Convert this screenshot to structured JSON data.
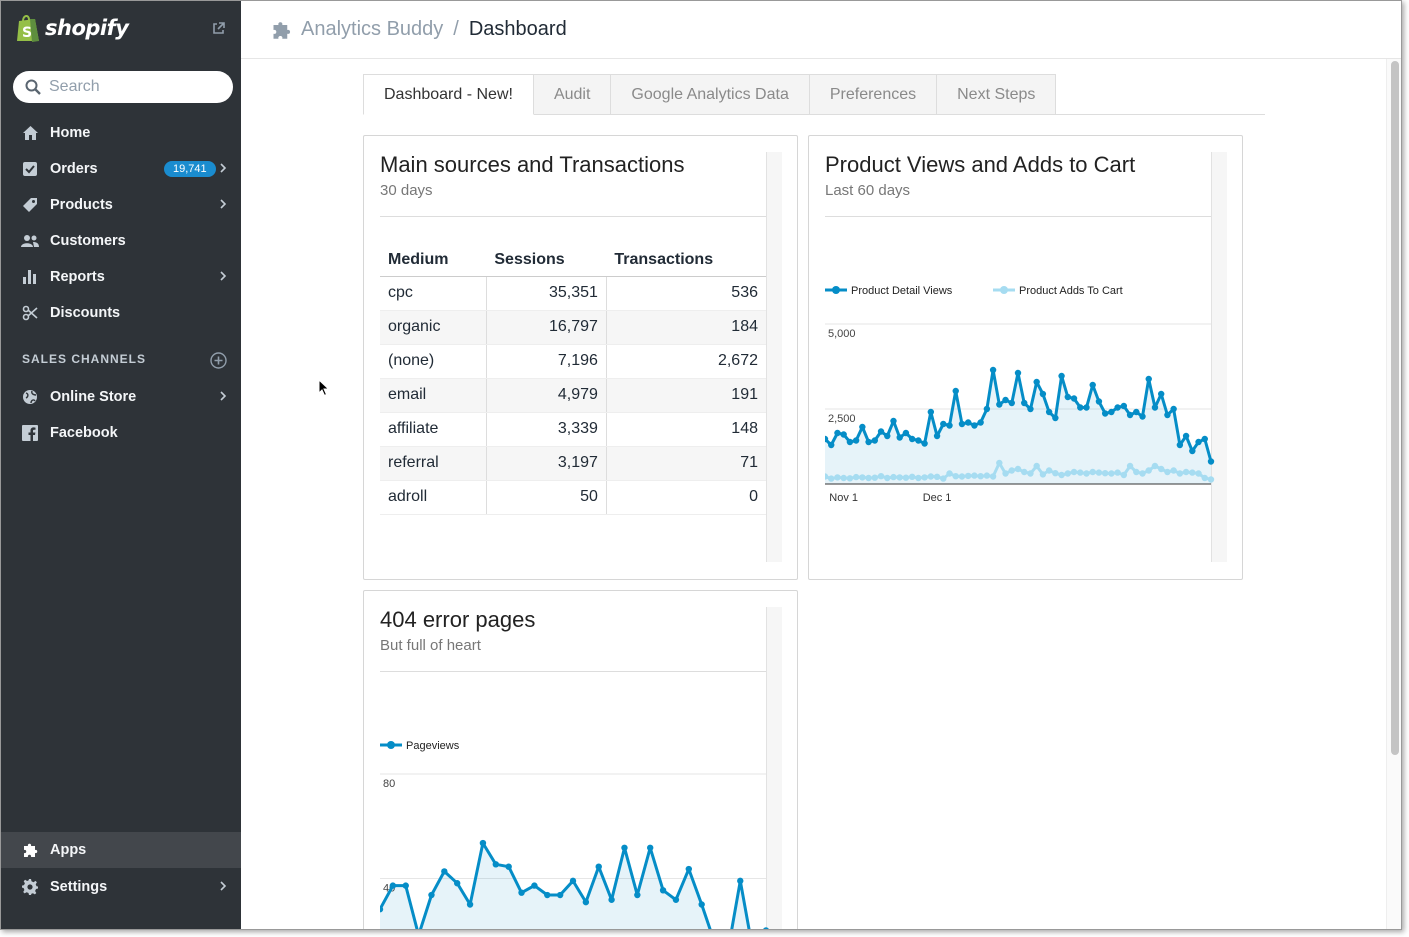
{
  "sidebar": {
    "brand": "shopify",
    "search_placeholder": "Search",
    "items": [
      {
        "label": "Home",
        "icon": "home-icon"
      },
      {
        "label": "Orders",
        "icon": "orders-icon",
        "badge": "19,741"
      },
      {
        "label": "Products",
        "icon": "tag-icon"
      },
      {
        "label": "Customers",
        "icon": "customers-icon"
      },
      {
        "label": "Reports",
        "icon": "reports-icon"
      },
      {
        "label": "Discounts",
        "icon": "discount-icon"
      }
    ],
    "section_label": "SALES CHANNELS",
    "channels": [
      {
        "label": "Online Store",
        "icon": "globe-icon"
      },
      {
        "label": "Facebook",
        "icon": "facebook-icon"
      }
    ],
    "bottom": [
      {
        "label": "Apps",
        "icon": "puzzle-icon"
      },
      {
        "label": "Settings",
        "icon": "gear-icon"
      }
    ]
  },
  "topbar": {
    "app": "Analytics Buddy",
    "separator": "/",
    "page": "Dashboard"
  },
  "tabs": [
    "Dashboard - New!",
    "Audit",
    "Google Analytics Data",
    "Preferences",
    "Next Steps"
  ],
  "cards": {
    "sources": {
      "title": "Main sources and Transactions",
      "subtitle": "30 days",
      "columns": [
        "Medium",
        "Sessions",
        "Transactions"
      ],
      "rows": [
        [
          "cpc",
          "35,351",
          "536"
        ],
        [
          "organic",
          "16,797",
          "184"
        ],
        [
          "(none)",
          "7,196",
          "2,672"
        ],
        [
          "email",
          "4,979",
          "191"
        ],
        [
          "affiliate",
          "3,339",
          "148"
        ],
        [
          "referral",
          "3,197",
          "71"
        ],
        [
          "adroll",
          "50",
          "0"
        ]
      ]
    },
    "product": {
      "title": "Product Views and Adds to Cart",
      "subtitle": "Last 60 days"
    },
    "errors": {
      "title": "404 error pages",
      "subtitle": "But full of heart"
    }
  },
  "chart_data": [
    {
      "type": "area",
      "ylim": [
        0,
        5000
      ],
      "yticks": [
        "5,000",
        "2,500"
      ],
      "xticks": [
        "Nov 1",
        "Dec 1"
      ],
      "xtick_index": [
        3,
        18
      ],
      "legend": "top-left",
      "series": [
        {
          "name": "Product Detail Views",
          "color": "#058dc7",
          "values": [
            1500,
            1300,
            1700,
            1650,
            1400,
            1450,
            1900,
            1400,
            1450,
            1750,
            1600,
            2100,
            1550,
            1700,
            1500,
            1450,
            1350,
            2400,
            1600,
            2000,
            1950,
            3100,
            2000,
            2050,
            1950,
            2050,
            2500,
            3800,
            2650,
            2800,
            2700,
            3700,
            2700,
            2500,
            3400,
            3000,
            2400,
            2200,
            3600,
            2900,
            2850,
            2550,
            2550,
            3300,
            2750,
            2350,
            2400,
            2550,
            2600,
            2300,
            2400,
            2250,
            3500,
            2550,
            3000,
            2300,
            2500,
            1300,
            1600,
            1100,
            1400,
            1500,
            750
          ]
        },
        {
          "name": "Product Adds To Cart",
          "color": "#a6dcf1",
          "values": [
            250,
            180,
            220,
            200,
            190,
            230,
            220,
            200,
            210,
            260,
            200,
            230,
            220,
            210,
            240,
            200,
            220,
            250,
            240,
            180,
            350,
            260,
            250,
            270,
            280,
            260,
            280,
            250,
            700,
            350,
            450,
            500,
            400,
            350,
            600,
            320,
            450,
            360,
            300,
            350,
            400,
            380,
            350,
            400,
            380,
            360,
            350,
            380,
            300,
            600,
            400,
            350,
            450,
            600,
            500,
            400,
            450,
            350,
            400,
            380,
            350,
            200,
            150
          ]
        }
      ]
    },
    {
      "type": "area",
      "ylim": [
        0,
        80
      ],
      "yticks": [
        "80",
        "40"
      ],
      "legend": "top-left",
      "series": [
        {
          "name": "Pageviews",
          "color": "#058dc7",
          "values": [
            27,
            37,
            37,
            16,
            33,
            43,
            38,
            29,
            55,
            46,
            45,
            34,
            37,
            33,
            33,
            39,
            30,
            45,
            31,
            53,
            33,
            53,
            35,
            31,
            44,
            29,
            13,
            8,
            39,
            9,
            18
          ]
        }
      ]
    }
  ]
}
